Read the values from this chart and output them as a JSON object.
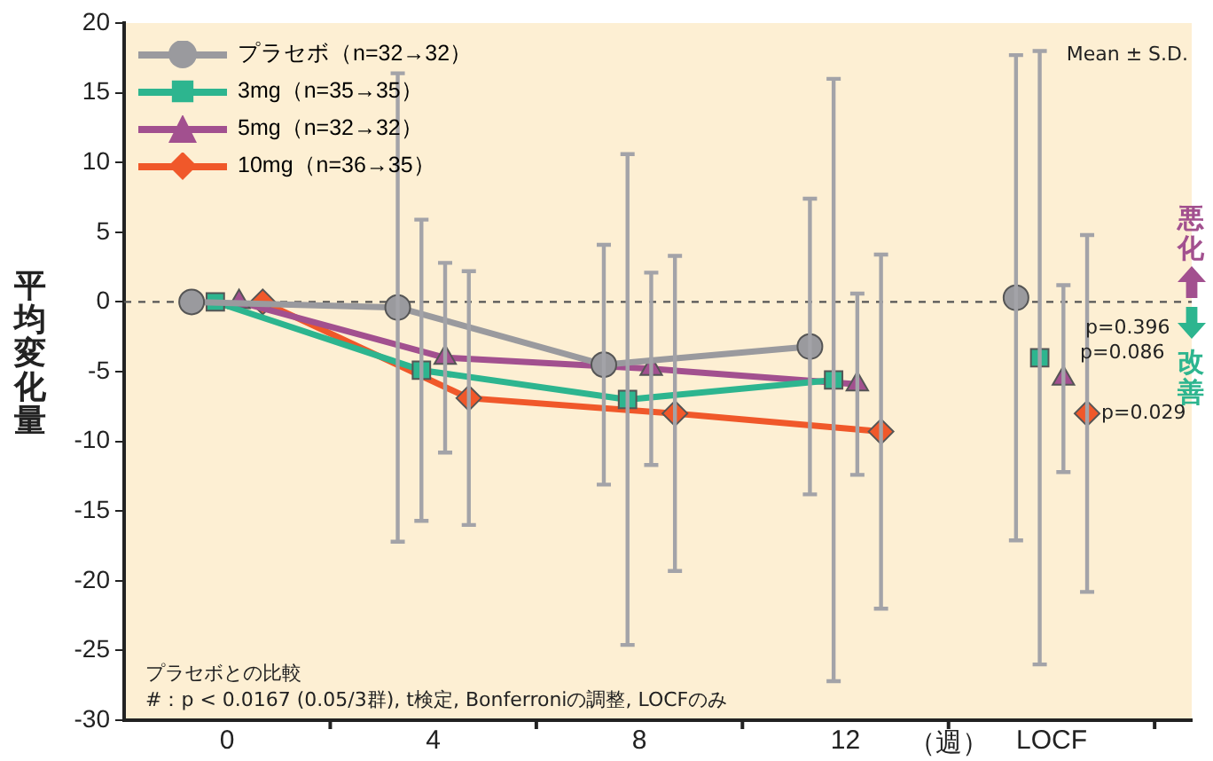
{
  "chart_data": {
    "type": "line",
    "ylabel": "平均変化量",
    "xlabel": "（週）",
    "categories": [
      "0",
      "4",
      "8",
      "12",
      "LOCF"
    ],
    "ylim": [
      -30,
      20
    ],
    "yticks": [
      -30,
      -25,
      -20,
      -15,
      -10,
      -5,
      0,
      5,
      10,
      15,
      20
    ],
    "grid": false,
    "legend": "top left",
    "ref_lines": [
      {
        "axis": "y",
        "value": 0,
        "line_style": "dashed",
        "color": "#555555"
      }
    ],
    "series": [
      {
        "name": "プラセボ（n=32→32）",
        "type": "line",
        "marker": "circle",
        "color": "#9a9a9e",
        "values": [
          0,
          -0.4,
          -4.5,
          -3.2,
          null
        ],
        "errors": [
          null,
          16.8,
          8.6,
          10.6,
          null
        ]
      },
      {
        "name": "3mg（n=35→35）",
        "type": "line",
        "marker": "square",
        "color": "#2db58f",
        "values": [
          0,
          -4.9,
          -7.0,
          -5.6,
          null
        ],
        "errors": [
          null,
          10.8,
          17.6,
          21.6,
          null
        ]
      },
      {
        "name": "5mg（n=32→32）",
        "type": "line",
        "marker": "triangle",
        "color": "#a2508f",
        "values": [
          0,
          -4.0,
          -4.8,
          -5.9,
          null
        ],
        "errors": [
          null,
          6.8,
          6.9,
          6.5,
          null
        ]
      },
      {
        "name": "10mg（n=36→35）",
        "type": "line",
        "marker": "diamond",
        "color": "#f0582a",
        "values": [
          0,
          -6.9,
          -8.0,
          -9.3,
          null
        ],
        "errors": [
          null,
          9.1,
          11.3,
          12.7,
          null
        ]
      },
      {
        "type": "scatter",
        "marker": "circle",
        "color": "#9a9a9e",
        "values": [
          null,
          null,
          null,
          null,
          0.3
        ],
        "errors": [
          null,
          null,
          null,
          null,
          17.4
        ]
      },
      {
        "type": "scatter",
        "marker": "square",
        "color": "#2db58f",
        "values": [
          null,
          null,
          null,
          null,
          -4.0
        ],
        "errors": [
          null,
          null,
          null,
          null,
          22.0
        ]
      },
      {
        "type": "scatter",
        "marker": "triangle",
        "color": "#a2508f",
        "values": [
          null,
          null,
          null,
          null,
          -5.5
        ],
        "errors": [
          null,
          null,
          null,
          null,
          6.7
        ]
      },
      {
        "type": "scatter",
        "marker": "diamond",
        "color": "#f0582a",
        "values": [
          null,
          null,
          null,
          null,
          -8.0
        ],
        "errors": [
          null,
          null,
          null,
          null,
          12.8
        ]
      }
    ],
    "annotations": [
      "Mean ± S.D.",
      "プラセボとの比較",
      "#：p < 0.0167 (0.05/3群), t検定, Bonferroniの調整, LOCFのみ",
      "悪化",
      "改善",
      "p=0.396",
      "p=0.086",
      "p=0.029"
    ]
  }
}
